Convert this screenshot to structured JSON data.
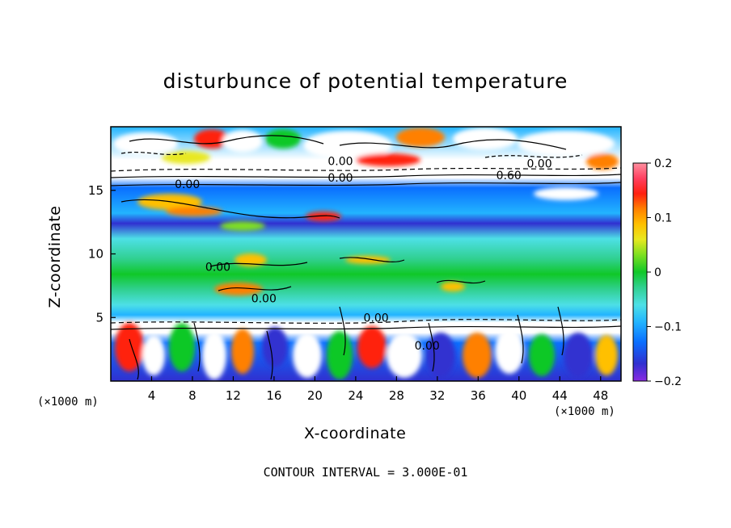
{
  "chart_data": {
    "type": "heatmap",
    "title": "disturbunce of potential temperature",
    "xlabel": "X-coordinate",
    "ylabel": "Z-coordinate",
    "x_unit": "(×1000 m)",
    "y_unit": "(×1000 m)",
    "xlim": [
      0,
      50
    ],
    "ylim": [
      0,
      20
    ],
    "x_ticks": [
      4,
      8,
      12,
      16,
      20,
      24,
      28,
      32,
      36,
      40,
      44,
      48
    ],
    "y_ticks": [
      5,
      10,
      15
    ],
    "colorbar": {
      "range": [
        -0.2,
        0.2
      ],
      "ticks": [
        {
          "value": 0.2,
          "label": "0.2"
        },
        {
          "value": 0.1,
          "label": "0.1"
        },
        {
          "value": 0.0,
          "label": "0"
        },
        {
          "value": -0.1,
          "label": "−0.1"
        },
        {
          "value": -0.2,
          "label": "−0.2"
        }
      ],
      "colors": [
        "#8a2be2",
        "#3030d0",
        "#0a6fff",
        "#22b4ff",
        "#4de0e6",
        "#30d090",
        "#10c828",
        "#7fe020",
        "#e8e820",
        "#ffc000",
        "#ff8000",
        "#ff2010",
        "#ff4060",
        "#ff90a0"
      ]
    },
    "contour_labels": [
      {
        "x": 22.5,
        "z": 17.3,
        "text": "0.00"
      },
      {
        "x": 22.5,
        "z": 16.0,
        "text": "0.00"
      },
      {
        "x": 42.0,
        "z": 17.1,
        "text": "0.00"
      },
      {
        "x": 39.0,
        "z": 16.2,
        "text": "0.60"
      },
      {
        "x": 7.5,
        "z": 15.5,
        "text": "0.00"
      },
      {
        "x": 10.5,
        "z": 9.0,
        "text": "0.00"
      },
      {
        "x": 15.0,
        "z": 6.5,
        "text": "0.00"
      },
      {
        "x": 26.0,
        "z": 5.0,
        "text": "0.00"
      },
      {
        "x": 31.0,
        "z": 2.8,
        "text": "0.00"
      }
    ],
    "contour_interval": "CONTOUR INTERVAL = 3.000E-01"
  }
}
